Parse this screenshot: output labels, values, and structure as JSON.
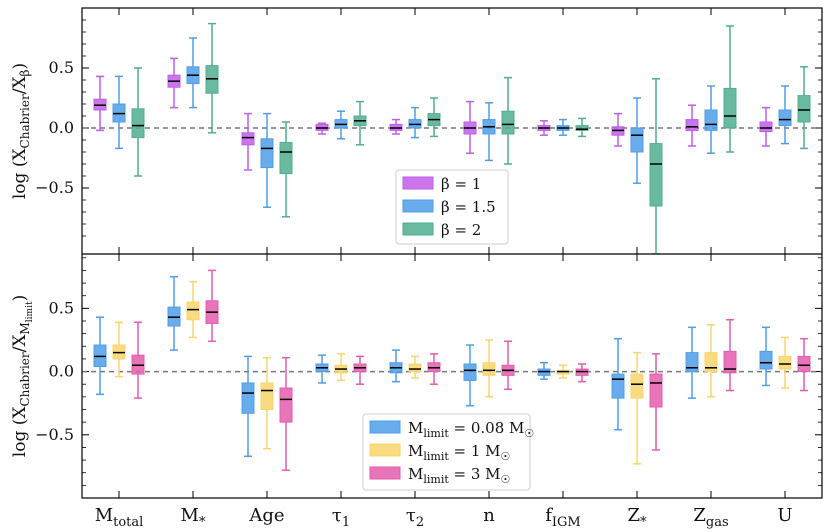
{
  "chart_data": [
    {
      "type": "box",
      "ylabel": "log (X_Chabrier/X_β)",
      "ylim": [
        -1.05,
        1.0
      ],
      "yticks": [
        -0.5,
        0.0,
        0.5
      ],
      "ytick_labels": [
        "−0.5",
        "0.0",
        "0.5"
      ],
      "reference_line": 0.0,
      "categories": [
        "M_total",
        "M_*",
        "Age",
        "τ_1",
        "τ_2",
        "n",
        "f_IGM",
        "Z_*",
        "Z_gas",
        "U"
      ],
      "legend": {
        "position": "center",
        "entries": [
          "β = 1",
          "β = 1.5",
          "β = 2"
        ]
      },
      "series": [
        {
          "name": "β = 1",
          "color": "#c15de8",
          "boxes": [
            {
              "wlo": -0.02,
              "q1": 0.15,
              "med": 0.19,
              "q3": 0.24,
              "whi": 0.43
            },
            {
              "wlo": 0.17,
              "q1": 0.34,
              "med": 0.39,
              "q3": 0.44,
              "whi": 0.58
            },
            {
              "wlo": -0.35,
              "q1": -0.14,
              "med": -0.08,
              "q3": -0.04,
              "whi": 0.12
            },
            {
              "wlo": -0.05,
              "q1": -0.02,
              "med": 0.0,
              "q3": 0.03,
              "whi": 0.04
            },
            {
              "wlo": -0.05,
              "q1": -0.02,
              "med": 0.0,
              "q3": 0.03,
              "whi": 0.07
            },
            {
              "wlo": -0.21,
              "q1": -0.05,
              "med": 0.0,
              "q3": 0.05,
              "whi": 0.22
            },
            {
              "wlo": -0.06,
              "q1": -0.02,
              "med": 0.0,
              "q3": 0.02,
              "whi": 0.06
            },
            {
              "wlo": -0.15,
              "q1": -0.06,
              "med": -0.02,
              "q3": 0.01,
              "whi": 0.12
            },
            {
              "wlo": -0.15,
              "q1": -0.02,
              "med": 0.01,
              "q3": 0.07,
              "whi": 0.19
            },
            {
              "wlo": -0.15,
              "q1": -0.03,
              "med": 0.0,
              "q3": 0.05,
              "whi": 0.17
            }
          ]
        },
        {
          "name": "β = 1.5",
          "color": "#4f9de8",
          "boxes": [
            {
              "wlo": -0.17,
              "q1": 0.05,
              "med": 0.12,
              "q3": 0.2,
              "whi": 0.43
            },
            {
              "wlo": 0.17,
              "q1": 0.37,
              "med": 0.44,
              "q3": 0.51,
              "whi": 0.75
            },
            {
              "wlo": -0.66,
              "q1": -0.33,
              "med": -0.17,
              "q3": -0.09,
              "whi": 0.12
            },
            {
              "wlo": -0.09,
              "q1": 0.0,
              "med": 0.03,
              "q3": 0.07,
              "whi": 0.14
            },
            {
              "wlo": -0.08,
              "q1": 0.0,
              "med": 0.03,
              "q3": 0.07,
              "whi": 0.17
            },
            {
              "wlo": -0.27,
              "q1": -0.05,
              "med": 0.01,
              "q3": 0.07,
              "whi": 0.21
            },
            {
              "wlo": -0.06,
              "q1": -0.02,
              "med": 0.0,
              "q3": 0.02,
              "whi": 0.07
            },
            {
              "wlo": -0.46,
              "q1": -0.2,
              "med": -0.06,
              "q3": 0.0,
              "whi": 0.25
            },
            {
              "wlo": -0.21,
              "q1": -0.02,
              "med": 0.03,
              "q3": 0.15,
              "whi": 0.35
            },
            {
              "wlo": -0.13,
              "q1": 0.02,
              "med": 0.07,
              "q3": 0.15,
              "whi": 0.35
            }
          ]
        },
        {
          "name": "β = 2",
          "color": "#4fae90",
          "boxes": [
            {
              "wlo": -0.4,
              "q1": -0.08,
              "med": 0.02,
              "q3": 0.16,
              "whi": 0.5
            },
            {
              "wlo": -0.04,
              "q1": 0.29,
              "med": 0.41,
              "q3": 0.52,
              "whi": 0.87
            },
            {
              "wlo": -0.74,
              "q1": -0.38,
              "med": -0.2,
              "q3": -0.12,
              "whi": 0.05
            },
            {
              "wlo": -0.14,
              "q1": 0.02,
              "med": 0.06,
              "q3": 0.1,
              "whi": 0.22
            },
            {
              "wlo": -0.07,
              "q1": 0.02,
              "med": 0.07,
              "q3": 0.12,
              "whi": 0.25
            },
            {
              "wlo": -0.3,
              "q1": -0.05,
              "med": 0.03,
              "q3": 0.14,
              "whi": 0.42
            },
            {
              "wlo": -0.07,
              "q1": -0.02,
              "med": -0.01,
              "q3": 0.02,
              "whi": 0.08
            },
            {
              "wlo": -1.05,
              "q1": -0.65,
              "med": -0.3,
              "q3": -0.13,
              "whi": 0.41
            },
            {
              "wlo": -0.2,
              "q1": 0.0,
              "med": 0.1,
              "q3": 0.33,
              "whi": 0.85
            },
            {
              "wlo": -0.17,
              "q1": 0.05,
              "med": 0.15,
              "q3": 0.27,
              "whi": 0.51
            }
          ]
        }
      ]
    },
    {
      "type": "box",
      "ylabel": "log (X_Chabrier/X_M_limit)",
      "ylim": [
        -1.0,
        0.93
      ],
      "yticks": [
        -0.5,
        0.0,
        0.5
      ],
      "ytick_labels": [
        "−0.5",
        "0.0",
        "0.5"
      ],
      "reference_line": 0.0,
      "categories": [
        "M_total",
        "M_*",
        "Age",
        "τ_1",
        "τ_2",
        "n",
        "f_IGM",
        "Z_*",
        "Z_gas",
        "U"
      ],
      "legend": {
        "position": "lower center",
        "entries": [
          "M_limit = 0.08 M_☉",
          "M_limit = 1 M_☉",
          "M_limit = 3 M_☉"
        ]
      },
      "series": [
        {
          "name": "M_limit = 0.08 M_☉",
          "color": "#4f9de8",
          "boxes": [
            {
              "wlo": -0.18,
              "q1": 0.04,
              "med": 0.12,
              "q3": 0.21,
              "whi": 0.43
            },
            {
              "wlo": 0.17,
              "q1": 0.36,
              "med": 0.43,
              "q3": 0.51,
              "whi": 0.75
            },
            {
              "wlo": -0.67,
              "q1": -0.33,
              "med": -0.17,
              "q3": -0.09,
              "whi": 0.12
            },
            {
              "wlo": -0.09,
              "q1": 0.0,
              "med": 0.03,
              "q3": 0.06,
              "whi": 0.13
            },
            {
              "wlo": -0.08,
              "q1": -0.01,
              "med": 0.03,
              "q3": 0.07,
              "whi": 0.17
            },
            {
              "wlo": -0.27,
              "q1": -0.07,
              "med": 0.01,
              "q3": 0.06,
              "whi": 0.21
            },
            {
              "wlo": -0.06,
              "q1": -0.03,
              "med": 0.0,
              "q3": 0.02,
              "whi": 0.07
            },
            {
              "wlo": -0.46,
              "q1": -0.21,
              "med": -0.06,
              "q3": -0.02,
              "whi": 0.26
            },
            {
              "wlo": -0.21,
              "q1": 0.0,
              "med": 0.03,
              "q3": 0.15,
              "whi": 0.35
            },
            {
              "wlo": -0.11,
              "q1": 0.02,
              "med": 0.07,
              "q3": 0.16,
              "whi": 0.35
            }
          ]
        },
        {
          "name": "M_limit = 1 M_☉",
          "color": "#f8d56b",
          "boxes": [
            {
              "wlo": -0.04,
              "q1": 0.1,
              "med": 0.15,
              "q3": 0.21,
              "whi": 0.39
            },
            {
              "wlo": 0.27,
              "q1": 0.41,
              "med": 0.49,
              "q3": 0.55,
              "whi": 0.71
            },
            {
              "wlo": -0.61,
              "q1": -0.3,
              "med": -0.15,
              "q3": -0.09,
              "whi": 0.11
            },
            {
              "wlo": -0.07,
              "q1": -0.01,
              "med": 0.02,
              "q3": 0.05,
              "whi": 0.14
            },
            {
              "wlo": -0.05,
              "q1": 0.0,
              "med": 0.02,
              "q3": 0.06,
              "whi": 0.12
            },
            {
              "wlo": -0.2,
              "q1": -0.03,
              "med": 0.01,
              "q3": 0.07,
              "whi": 0.25
            },
            {
              "wlo": -0.05,
              "q1": -0.02,
              "med": 0.0,
              "q3": 0.01,
              "whi": 0.05
            },
            {
              "wlo": -0.73,
              "q1": -0.21,
              "med": -0.1,
              "q3": -0.02,
              "whi": 0.15
            },
            {
              "wlo": -0.2,
              "q1": 0.0,
              "med": 0.03,
              "q3": 0.15,
              "whi": 0.37
            },
            {
              "wlo": -0.13,
              "q1": 0.02,
              "med": 0.06,
              "q3": 0.12,
              "whi": 0.27
            }
          ]
        },
        {
          "name": "M_limit = 3 M_☉",
          "color": "#e45cae",
          "boxes": [
            {
              "wlo": -0.21,
              "q1": -0.02,
              "med": 0.05,
              "q3": 0.13,
              "whi": 0.39
            },
            {
              "wlo": 0.24,
              "q1": 0.38,
              "med": 0.47,
              "q3": 0.56,
              "whi": 0.8
            },
            {
              "wlo": -0.78,
              "q1": -0.4,
              "med": -0.22,
              "q3": -0.13,
              "whi": 0.11
            },
            {
              "wlo": -0.1,
              "q1": 0.0,
              "med": 0.03,
              "q3": 0.06,
              "whi": 0.12
            },
            {
              "wlo": -0.1,
              "q1": 0.0,
              "med": 0.03,
              "q3": 0.07,
              "whi": 0.14
            },
            {
              "wlo": -0.14,
              "q1": -0.03,
              "med": 0.01,
              "q3": 0.05,
              "whi": 0.24
            },
            {
              "wlo": -0.08,
              "q1": -0.03,
              "med": 0.0,
              "q3": 0.02,
              "whi": 0.06
            },
            {
              "wlo": -0.62,
              "q1": -0.28,
              "med": -0.09,
              "q3": -0.02,
              "whi": 0.14
            },
            {
              "wlo": -0.15,
              "q1": -0.01,
              "med": 0.02,
              "q3": 0.16,
              "whi": 0.41
            },
            {
              "wlo": -0.15,
              "q1": 0.0,
              "med": 0.05,
              "q3": 0.12,
              "whi": 0.26
            }
          ]
        }
      ]
    }
  ]
}
